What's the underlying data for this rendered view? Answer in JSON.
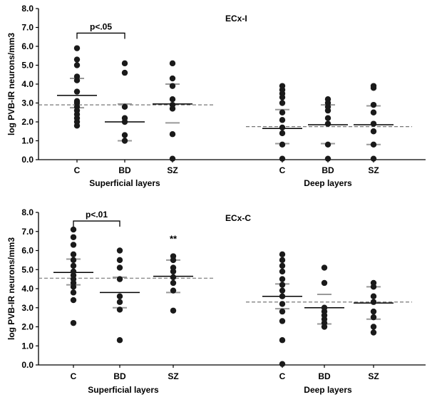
{
  "chart_data": [
    {
      "type": "scatter",
      "title": "ECx-I",
      "ylabel": "log PVB-IR neurons/mm3",
      "ylim": [
        0,
        8
      ],
      "yticks": [
        "0.0",
        "1.0",
        "2.0",
        "3.0",
        "4.0",
        "5.0",
        "6.0",
        "7.0",
        "8.0"
      ],
      "ref_value": 2.9,
      "right_ref_value": 1.75,
      "groups": [
        {
          "label": "Superficial layers",
          "categories": [
            {
              "label": "C",
              "values": [
                1.8,
                2.0,
                2.2,
                2.4,
                2.6,
                2.8,
                3.0,
                3.1,
                3.6,
                4.2,
                4.4,
                5.0,
                5.3,
                5.9
              ],
              "mean": 3.4,
              "sd_high": 4.3,
              "sd_low": 2.75
            },
            {
              "label": "BD",
              "values": [
                1.0,
                1.3,
                2.0,
                2.2,
                2.8,
                4.6,
                5.1
              ],
              "mean": 2.0,
              "sd_high": 2.95,
              "sd_low": 1.0
            },
            {
              "label": "SZ",
              "values": [
                0.05,
                1.35,
                2.7,
                2.9,
                3.2,
                3.9,
                4.3,
                5.1
              ],
              "mean": 2.95,
              "sd_high": 4.0,
              "sd_low": 1.95
            }
          ]
        },
        {
          "label": "Deep layers",
          "categories": [
            {
              "label": "C",
              "values": [
                0.05,
                0.8,
                1.4,
                1.7,
                2.1,
                2.5,
                3.0,
                3.3,
                3.5,
                3.7,
                3.9
              ],
              "mean": 1.65,
              "sd_high": 2.65,
              "sd_low": 0.85
            },
            {
              "label": "BD",
              "values": [
                0.05,
                0.8,
                1.9,
                2.2,
                2.6,
                2.8,
                3.0,
                3.2
              ],
              "mean": 1.85,
              "sd_high": 2.9,
              "sd_low": 0.85
            },
            {
              "label": "SZ",
              "values": [
                0.05,
                0.8,
                1.5,
                1.9,
                2.5,
                2.9,
                3.8,
                3.9
              ],
              "mean": 1.85,
              "sd_high": 2.85,
              "sd_low": 0.8
            }
          ]
        }
      ],
      "annotations": [
        {
          "type": "bracket",
          "from": "C",
          "to": "BD",
          "group": 0,
          "text": "p<.05",
          "y": 6.7
        }
      ]
    },
    {
      "type": "scatter",
      "title": "ECx-C",
      "ylabel": "log PVB-IR neurons/mm3",
      "ylim": [
        0,
        8
      ],
      "yticks": [
        "0.0",
        "1.0",
        "2.0",
        "3.0",
        "4.0",
        "5.0",
        "6.0",
        "7.0",
        "8.0"
      ],
      "ref_value": 4.55,
      "right_ref_value": 3.3,
      "groups": [
        {
          "label": "Superficial layers",
          "categories": [
            {
              "label": "C",
              "values": [
                2.2,
                3.4,
                3.8,
                4.1,
                4.3,
                4.5,
                4.7,
                4.9,
                5.2,
                5.5,
                5.8,
                6.3,
                6.7,
                7.1
              ],
              "mean": 4.85,
              "sd_high": 5.55,
              "sd_low": 4.2
            },
            {
              "label": "BD",
              "values": [
                1.3,
                2.9,
                3.3,
                3.6,
                4.5,
                5.1,
                5.5,
                6.0
              ],
              "mean": 3.8,
              "sd_high": 4.6,
              "sd_low": 3.0
            },
            {
              "label": "SZ",
              "values": [
                2.85,
                3.9,
                4.3,
                4.6,
                4.9,
                5.1,
                5.5,
                5.7
              ],
              "mean": 4.65,
              "sd_high": 5.5,
              "sd_low": 3.8
            }
          ]
        },
        {
          "label": "Deep layers",
          "categories": [
            {
              "label": "C",
              "values": [
                0.05,
                1.3,
                2.3,
                2.8,
                3.2,
                3.6,
                3.9,
                4.2,
                4.5,
                4.9,
                5.2,
                5.5,
                5.8
              ],
              "mean": 3.6,
              "sd_high": 4.25,
              "sd_low": 2.95
            },
            {
              "label": "BD",
              "values": [
                2.0,
                2.2,
                2.4,
                2.6,
                2.8,
                3.0,
                4.3,
                5.1
              ],
              "mean": 3.0,
              "sd_high": 3.7,
              "sd_low": 2.15
            },
            {
              "label": "SZ",
              "values": [
                1.7,
                2.0,
                2.5,
                2.8,
                3.3,
                3.6,
                4.1,
                4.3
              ],
              "mean": 3.25,
              "sd_high": 4.1,
              "sd_low": 2.4
            }
          ]
        }
      ],
      "annotations": [
        {
          "type": "bracket",
          "from": "C",
          "to": "BD",
          "group": 0,
          "text": "p<.01",
          "y": 7.55
        },
        {
          "type": "marker",
          "category": "SZ",
          "group": 0,
          "text": "**",
          "y": 6.45
        }
      ]
    }
  ]
}
